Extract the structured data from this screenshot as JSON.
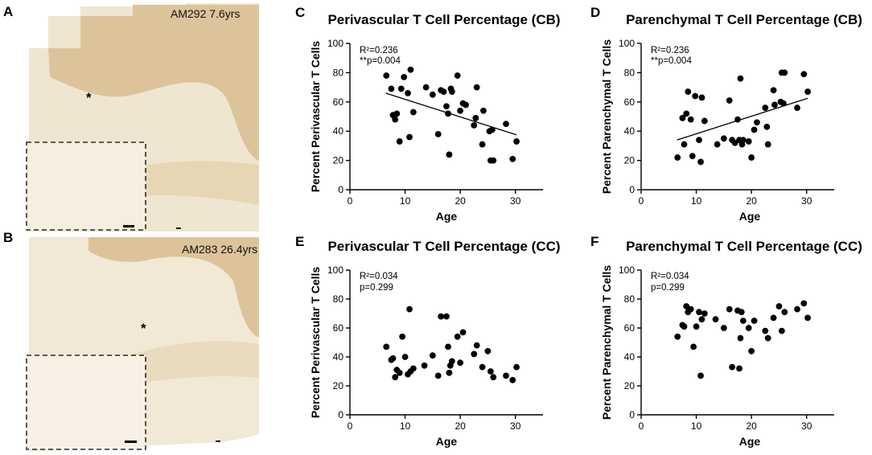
{
  "image_panels": [
    {
      "letter": "A",
      "caption": "AM292 7.6yrs",
      "colors": {
        "tissue_dark": "#dcc39a",
        "tissue_light": "#efe4cc",
        "inset_bg": "#f5efdf"
      }
    },
    {
      "letter": "B",
      "caption": "AM283 26.4yrs",
      "colors": {
        "tissue_dark": "#dcc39a",
        "tissue_light": "#f1e8d6",
        "inset_bg": "#f6f1e4"
      }
    }
  ],
  "asterisk": "*",
  "chart_data": [
    {
      "letter": "C",
      "type": "scatter",
      "title": "Perivascular T Cell Percentage (CB)",
      "xlabel": "Age",
      "ylabel": "Percent Perivascular T Cells",
      "xlim": [
        0,
        35
      ],
      "ylim": [
        0,
        100
      ],
      "xticks": [
        0,
        10,
        20,
        30
      ],
      "yticks": [
        0,
        20,
        40,
        60,
        80,
        100
      ],
      "stats": [
        "R²=0.236",
        "**p=0.004"
      ],
      "fit": {
        "x": [
          6.5,
          30.2
        ],
        "y": [
          66,
          37.5
        ]
      },
      "x": [
        6.6,
        7.5,
        7.8,
        8.2,
        8.5,
        9,
        9.3,
        9.8,
        10.5,
        10.8,
        11,
        11.5,
        13.8,
        15,
        16,
        16.5,
        17,
        17.5,
        17.8,
        18,
        18.3,
        18.5,
        19.5,
        20,
        20.5,
        21,
        22.5,
        22.8,
        23,
        24,
        24.2,
        25.3,
        25.5,
        25.8,
        26,
        28.3,
        29.5,
        30.2
      ],
      "y": [
        78,
        69,
        51,
        48,
        52,
        33,
        69,
        77,
        66,
        36,
        82,
        53,
        70,
        65,
        38,
        68,
        67,
        57,
        52,
        24,
        69,
        67,
        78,
        54,
        59,
        58,
        44,
        49,
        70,
        31,
        54,
        40,
        20,
        41,
        20,
        45,
        21,
        33
      ]
    },
    {
      "letter": "D",
      "type": "scatter",
      "title": "Parenchymal T Cell Percentage (CB)",
      "xlabel": "Age",
      "ylabel": "Percent Parenchymal T Cells",
      "xlim": [
        0,
        35
      ],
      "ylim": [
        0,
        100
      ],
      "xticks": [
        0,
        10,
        20,
        30
      ],
      "yticks": [
        0,
        20,
        40,
        60,
        80,
        100
      ],
      "stats": [
        "R²=0.236",
        "**p=0.004"
      ],
      "fit": {
        "x": [
          6.5,
          30.2
        ],
        "y": [
          34,
          62.5
        ]
      },
      "x": [
        6.6,
        7.5,
        7.8,
        8.2,
        8.5,
        9,
        9.3,
        9.8,
        10.5,
        10.8,
        11,
        11.5,
        13.8,
        15,
        16,
        16.5,
        17,
        17.5,
        17.8,
        18,
        18.3,
        18.5,
        19.5,
        20,
        20.5,
        21,
        22.5,
        22.8,
        23,
        24,
        24.2,
        25.3,
        25.5,
        25.8,
        26,
        28.3,
        29.5,
        30.2
      ],
      "y": [
        22,
        49,
        31,
        52,
        67,
        48,
        23,
        64,
        34,
        19,
        63,
        47,
        31,
        35,
        61,
        34,
        32,
        48,
        34,
        76,
        31,
        34,
        33,
        22,
        41,
        46,
        56,
        43,
        31,
        68,
        58,
        60,
        80,
        59,
        80,
        56,
        79,
        67
      ]
    },
    {
      "letter": "E",
      "type": "scatter",
      "title": "Perivascular T Cell Percentage (CC)",
      "xlabel": "Age",
      "ylabel": "Percent Perivascular T Cells",
      "xlim": [
        0,
        35
      ],
      "ylim": [
        0,
        100
      ],
      "xticks": [
        0,
        10,
        20,
        30
      ],
      "yticks": [
        0,
        20,
        40,
        60,
        80,
        100
      ],
      "stats": [
        "R²=0.034",
        "p=0.299"
      ],
      "fit": null,
      "x": [
        6.6,
        7.5,
        7.8,
        8.2,
        8.5,
        9,
        9.5,
        10,
        10.5,
        10.8,
        11,
        11.5,
        13.5,
        15,
        16,
        16.5,
        17.5,
        17.8,
        18,
        18.2,
        18.5,
        19.5,
        20,
        20.5,
        22.5,
        23,
        24,
        25,
        25.5,
        26,
        28.3,
        29.5,
        30.2
      ],
      "y": [
        47,
        38,
        39,
        26,
        31,
        29,
        54,
        40,
        28,
        73,
        30,
        32,
        34,
        41,
        27,
        68,
        68,
        47,
        29,
        34,
        37,
        54,
        36,
        57,
        42,
        48,
        33,
        44,
        30,
        26,
        27,
        24,
        33
      ]
    },
    {
      "letter": "F",
      "type": "scatter",
      "title": "Parenchymal T Cell Percentage (CC)",
      "xlabel": "Age",
      "ylabel": "Percent Parenchymal T Cells",
      "xlim": [
        0,
        35
      ],
      "ylim": [
        0,
        100
      ],
      "xticks": [
        0,
        10,
        20,
        30
      ],
      "yticks": [
        0,
        20,
        40,
        60,
        80,
        100
      ],
      "stats": [
        "R²=0.034",
        "p=0.299"
      ],
      "fit": null,
      "x": [
        6.6,
        7.5,
        7.8,
        8.2,
        8.5,
        9,
        9.5,
        10,
        10.5,
        10.8,
        11,
        11.5,
        13.5,
        15,
        16,
        16.5,
        17.5,
        17.8,
        18,
        18.2,
        18.5,
        19.5,
        20,
        20.5,
        22.5,
        23,
        24,
        25,
        25.5,
        26,
        28.3,
        29.5,
        30.2
      ],
      "y": [
        54,
        62,
        61,
        75,
        71,
        73,
        47,
        61,
        71,
        27,
        66,
        70,
        66,
        60,
        73,
        33,
        72,
        32,
        53,
        71,
        65,
        60,
        44,
        65,
        58,
        53,
        67,
        75,
        58,
        71,
        73,
        77,
        67
      ]
    }
  ]
}
